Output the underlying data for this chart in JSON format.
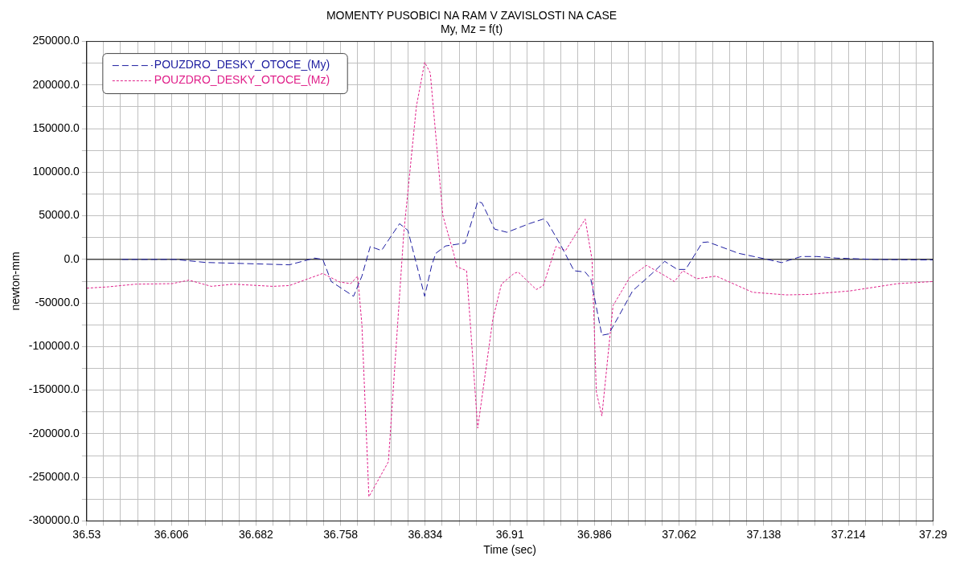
{
  "chart_data": {
    "type": "line",
    "title": "MOMENTY PUSOBICI NA RAM V ZAVISLOSTI NA CASE",
    "subtitle": "My, Mz = f(t)",
    "xlabel": "Time (sec)",
    "ylabel": "newton-mm",
    "xlim": [
      36.53,
      37.29
    ],
    "xticks": [
      36.53,
      {
        "value": 36.5452,
        "label": null
      },
      {
        "value": 36.5604,
        "label": null
      },
      {
        "value": 36.5756,
        "label": null
      },
      {
        "value": 36.5908,
        "label": null
      },
      36.606,
      {
        "value": 36.6212,
        "label": null
      },
      {
        "value": 36.6364,
        "label": null
      },
      {
        "value": 36.6516,
        "label": null
      },
      {
        "value": 36.6668,
        "label": null
      },
      36.682,
      {
        "value": 36.6972,
        "label": null
      },
      {
        "value": 36.7124,
        "label": null
      },
      {
        "value": 36.7276,
        "label": null
      },
      {
        "value": 36.7428,
        "label": null
      },
      36.758,
      {
        "value": 36.7732,
        "label": null
      },
      {
        "value": 36.7884,
        "label": null
      },
      {
        "value": 36.8036,
        "label": null
      },
      {
        "value": 36.8188,
        "label": null
      },
      36.834,
      {
        "value": 36.8492,
        "label": null
      },
      {
        "value": 36.8644,
        "label": null
      },
      {
        "value": 36.8796,
        "label": null
      },
      {
        "value": 36.8948,
        "label": null
      },
      36.91,
      {
        "value": 36.9252,
        "label": null
      },
      {
        "value": 36.9404,
        "label": null
      },
      {
        "value": 36.9556,
        "label": null
      },
      {
        "value": 36.9708,
        "label": null
      },
      36.986,
      {
        "value": 37.0012,
        "label": null
      },
      {
        "value": 37.0164,
        "label": null
      },
      {
        "value": 37.0316,
        "label": null
      },
      {
        "value": 37.0468,
        "label": null
      },
      37.062,
      {
        "value": 37.0772,
        "label": null
      },
      {
        "value": 37.0924,
        "label": null
      },
      {
        "value": 37.1076,
        "label": null
      },
      {
        "value": 37.1228,
        "label": null
      },
      37.138,
      {
        "value": 37.1532,
        "label": null
      },
      {
        "value": 37.1684,
        "label": null
      },
      {
        "value": 37.1836,
        "label": null
      },
      {
        "value": 37.1988,
        "label": null
      },
      37.214,
      {
        "value": 37.2292,
        "label": null
      },
      {
        "value": 37.2444,
        "label": null
      },
      {
        "value": 37.2596,
        "label": null
      },
      {
        "value": 37.2748,
        "label": null
      },
      37.29
    ],
    "ylim": [
      -300000,
      250000
    ],
    "yticks": [
      {
        "value": -300000,
        "label": "-300000.0"
      },
      {
        "value": -275000,
        "label": null
      },
      {
        "value": -250000,
        "label": "-250000.0"
      },
      {
        "value": -225000,
        "label": null
      },
      {
        "value": -200000,
        "label": "-200000.0"
      },
      {
        "value": -175000,
        "label": null
      },
      {
        "value": -150000,
        "label": "-150000.0"
      },
      {
        "value": -125000,
        "label": null
      },
      {
        "value": -100000,
        "label": "-100000.0"
      },
      {
        "value": -75000,
        "label": null
      },
      {
        "value": -50000,
        "label": "-50000.0"
      },
      {
        "value": -25000,
        "label": null
      },
      {
        "value": 0,
        "label": "0.0"
      },
      {
        "value": 25000,
        "label": null
      },
      {
        "value": 50000,
        "label": "50000.0"
      },
      {
        "value": 75000,
        "label": null
      },
      {
        "value": 100000,
        "label": "100000.0"
      },
      {
        "value": 125000,
        "label": null
      },
      {
        "value": 150000,
        "label": "150000.0"
      },
      {
        "value": 175000,
        "label": null
      },
      {
        "value": 200000,
        "label": "200000.0"
      },
      {
        "value": 225000,
        "label": null
      },
      {
        "value": 250000,
        "label": "250000.0"
      }
    ],
    "grid": true,
    "legend": "top left",
    "marker": "none",
    "ref_lines": [
      {
        "axis": "y",
        "value": 0,
        "color": "#000000",
        "line_style": "solid"
      }
    ],
    "series": [
      {
        "name": "POUZDRO_DESKY_OTOCE_(My)",
        "color": "#1c1ca0",
        "line_style": "dashed",
        "x": [
          36.5616,
          36.6092,
          36.6368,
          36.712,
          36.7345,
          36.742,
          36.7496,
          36.7696,
          36.7771,
          36.7846,
          36.7947,
          36.8109,
          36.8184,
          36.8335,
          36.8398,
          36.8435,
          36.8522,
          36.8698,
          36.8811,
          36.8849,
          36.8962,
          36.9074,
          36.9274,
          36.94,
          36.9437,
          36.9563,
          36.9676,
          36.9776,
          36.9826,
          36.9926,
          36.9988,
          37.0076,
          37.0202,
          37.0377,
          37.049,
          37.0603,
          37.0678,
          37.0828,
          37.0878,
          37.1153,
          37.1379,
          37.1542,
          37.163,
          37.1717,
          37.1856,
          37.2031,
          37.2382,
          37.2781,
          37.29
        ],
        "values": [
          0,
          0,
          -3500,
          -6200,
          1500,
          0,
          -25400,
          -42300,
          -19200,
          14800,
          10200,
          41000,
          33300,
          -42300,
          -6800,
          7000,
          15400,
          18800,
          66300,
          64800,
          34800,
          31100,
          41000,
          46300,
          42600,
          14800,
          -13000,
          -14500,
          -22200,
          -87000,
          -85500,
          -65500,
          -36100,
          -16100,
          -2200,
          -11500,
          -11500,
          19400,
          20000,
          7000,
          900,
          -3700,
          0,
          3300,
          3300,
          1500,
          0,
          -600,
          -600
        ]
      },
      {
        "name": "POUZDRO_DESKY_OTOCE_(Mz)",
        "color": "#e0208a",
        "line_style": "dotted",
        "x": [
          36.53,
          36.5491,
          36.5741,
          36.6067,
          36.6218,
          36.6418,
          36.6618,
          36.697,
          36.712,
          36.742,
          36.7571,
          36.7671,
          36.7733,
          36.7771,
          36.7834,
          36.8009,
          36.8147,
          36.826,
          36.8335,
          36.8385,
          36.8498,
          36.8598,
          36.8623,
          36.8711,
          36.8811,
          36.8947,
          36.9024,
          36.9137,
          36.9174,
          36.9337,
          36.94,
          36.9513,
          36.96,
          36.9776,
          36.9838,
          36.9876,
          36.9926,
          37.0026,
          37.0176,
          37.0327,
          37.0477,
          37.0578,
          37.0653,
          37.0778,
          37.0953,
          37.1279,
          37.158,
          37.178,
          37.2156,
          37.2582,
          37.29
        ],
        "values": [
          -33000,
          -31500,
          -28400,
          -27800,
          -23800,
          -30900,
          -28400,
          -30900,
          -30000,
          -16100,
          -25900,
          -27800,
          -19200,
          -74700,
          -272200,
          -232100,
          30200,
          175300,
          226200,
          213900,
          50300,
          5600,
          -8300,
          -13000,
          -193500,
          -68500,
          -28400,
          -16100,
          -14500,
          -34600,
          -30000,
          14800,
          10200,
          46300,
          -600,
          -151800,
          -179600,
          -53100,
          -20700,
          -6800,
          -17600,
          -25400,
          -13000,
          -22200,
          -19200,
          -37700,
          -40700,
          -40200,
          -36100,
          -27800,
          -25400
        ]
      }
    ]
  }
}
